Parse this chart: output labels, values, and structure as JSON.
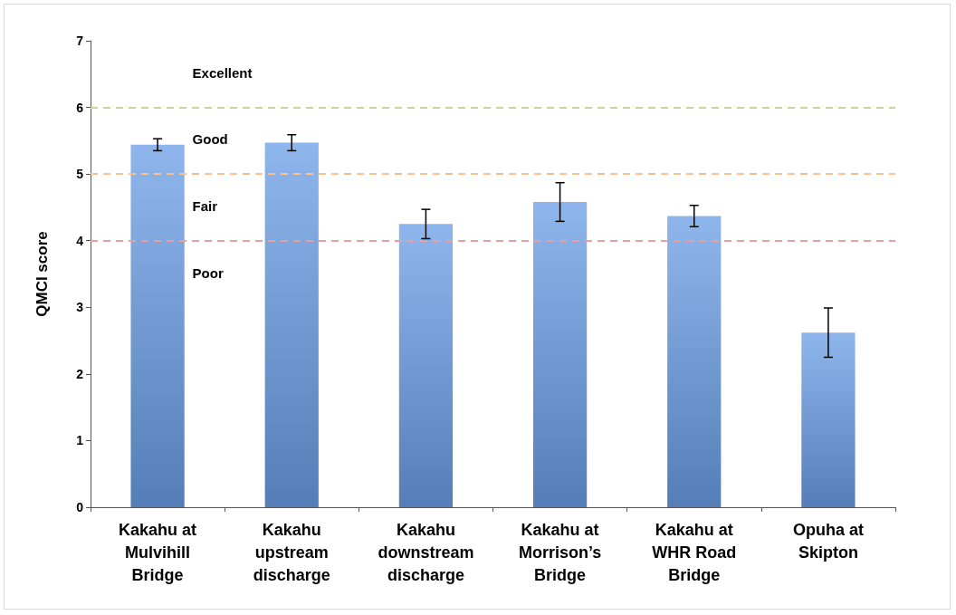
{
  "chart_data": {
    "type": "bar",
    "ylabel": "QMCI score",
    "categories": [
      "Kakahu at\nMulvihill\nBridge",
      "Kakahu\nupstream\ndischarge",
      "Kakahu\ndownstream\ndischarge",
      "Kakahu at\nMorrison’s\nBridge",
      "Kakahu at\nWHR Road\nBridge",
      "Opuha at\nSkipton"
    ],
    "values": [
      5.44,
      5.47,
      4.25,
      4.58,
      4.37,
      2.62
    ],
    "errors": [
      0.09,
      0.12,
      0.22,
      0.29,
      0.16,
      0.37
    ],
    "color": "#6a9de6",
    "ylim": [
      0,
      7
    ],
    "yticks": [
      0,
      1,
      2,
      3,
      4,
      5,
      6,
      7
    ],
    "grid": false,
    "ref_lines": [
      {
        "axis": "y",
        "value": 6,
        "color": "#c3d69b",
        "line_style": "dashed"
      },
      {
        "axis": "y",
        "value": 5,
        "color": "#fac090",
        "line_style": "dashed"
      },
      {
        "axis": "y",
        "value": 4,
        "color": "#e6a0a0",
        "line_style": "dashed"
      }
    ],
    "annotations": [
      "Excellent",
      "Good",
      "Fair",
      "Poor"
    ]
  }
}
